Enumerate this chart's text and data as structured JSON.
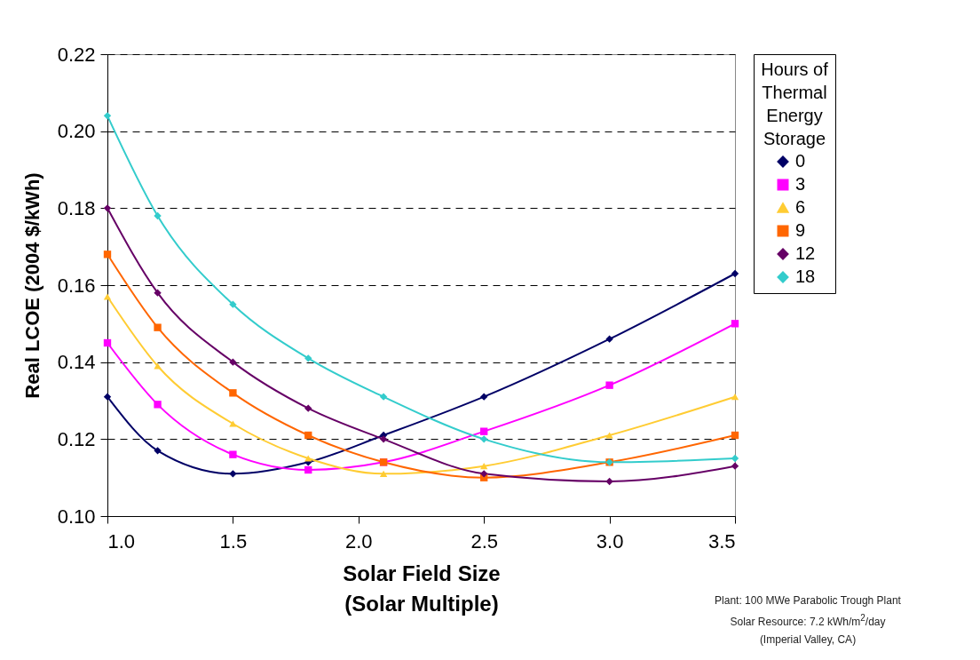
{
  "chart_data": {
    "type": "line",
    "xlabel": "Solar Field Size\n(Solar Multiple)",
    "ylabel": "Real LCOE (2004 $/kWh)",
    "legend_title": "Hours of Thermal Energy Storage",
    "x": [
      1.0,
      1.2,
      1.5,
      1.8,
      2.1,
      2.5,
      3.0,
      3.5
    ],
    "xlim": [
      1.0,
      3.5
    ],
    "xticks": [
      {
        "value": 1,
        "label": "1.0"
      },
      1.5,
      {
        "value": 2,
        "label": "2.0"
      },
      2.5,
      {
        "value": 3,
        "label": "3.0"
      },
      3.5
    ],
    "ylim": [
      0.1,
      0.22
    ],
    "yticks": [
      {
        "value": 0.1,
        "label": "0.10"
      },
      0.12,
      0.14,
      0.16,
      0.18,
      {
        "value": 0.2,
        "label": "0.20"
      },
      0.22
    ],
    "grid": "y",
    "legend": "right",
    "line_style": "solid",
    "series": [
      {
        "name": "0",
        "color": "#000066",
        "marker": "diamond",
        "values": [
          0.131,
          0.117,
          0.111,
          0.114,
          0.121,
          0.131,
          0.146,
          0.163
        ]
      },
      {
        "name": "3",
        "color": "#ff00ff",
        "marker": "square",
        "values": [
          0.145,
          0.129,
          0.116,
          0.112,
          0.114,
          0.122,
          0.134,
          0.15
        ]
      },
      {
        "name": "6",
        "color": "#ffcc33",
        "marker": "triangle",
        "values": [
          0.157,
          0.139,
          0.124,
          0.115,
          0.111,
          0.113,
          0.121,
          0.131
        ]
      },
      {
        "name": "9",
        "color": "#ff6600",
        "marker": "square",
        "values": [
          0.168,
          0.149,
          0.132,
          0.121,
          0.114,
          0.11,
          0.114,
          0.121
        ]
      },
      {
        "name": "12",
        "color": "#660066",
        "marker": "diamond",
        "values": [
          0.18,
          0.158,
          0.14,
          0.128,
          0.12,
          0.111,
          0.109,
          0.113
        ]
      },
      {
        "name": "18",
        "color": "#33cccc",
        "marker": "diamond",
        "values": [
          0.204,
          0.178,
          0.155,
          0.141,
          0.131,
          0.12,
          0.114,
          0.115
        ]
      }
    ],
    "annotations": [
      "Plant: 100 MWe Parabolic Trough Plant",
      "Solar Resource: 7.2 kWh/m$^{2}$/day",
      "(Imperial Valley, CA)"
    ]
  }
}
